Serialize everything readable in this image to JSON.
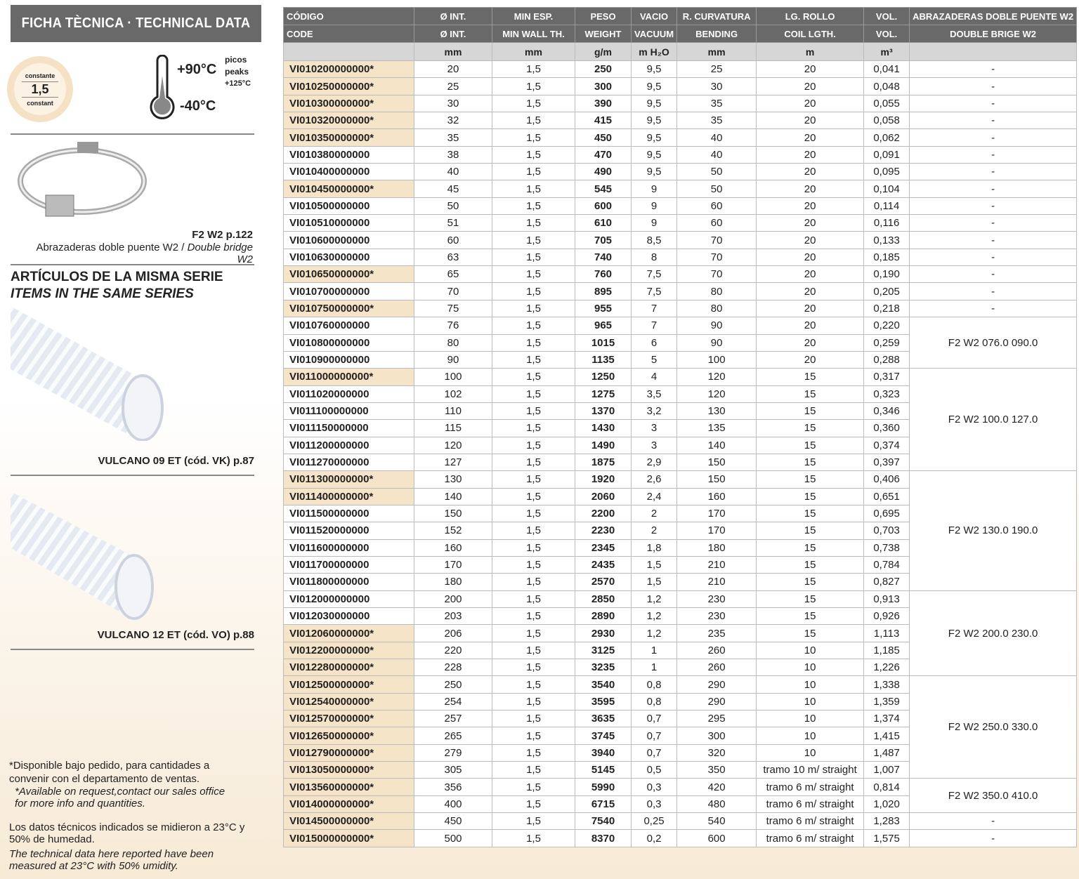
{
  "title": "FICHA TÈCNICA · TECHNICAL DATA",
  "badge": {
    "top": "constante",
    "value": "1,5",
    "bottom": "constant"
  },
  "temperature": {
    "max": "+90°C",
    "min": "-40°C",
    "peaks_es": "picos",
    "peaks_en": "peaks",
    "peaks_value": "+125°C"
  },
  "clamp": {
    "ref": "F2 W2 p.122",
    "caption_es": "Abrazaderas doble puente W2 / ",
    "caption_en": "Double bridge W2"
  },
  "series": {
    "title_es": "ARTÍCULOS DE LA MISMA SERIE",
    "title_en": "ITEMS IN THE SAME SERIES",
    "items": [
      {
        "label": "VULCANO 09 ET (cód. VK) p.87"
      },
      {
        "label": "VULCANO 12 ET (cód. VO) p.88"
      }
    ]
  },
  "notes": {
    "avail_es": "*Disponible bajo pedido, para cantidades a convenir con el departamento de ventas.",
    "avail_en": "*Available on request,contact our sales office for more info and quantities.",
    "conds_es": "Los datos técnicos indicados se midieron a 23°C y 50% de humedad.",
    "conds_en": "The technical data here reported have been measured at 23°C with 50% umidity."
  },
  "colors": {
    "header": "#696969",
    "highlight": "#f6e4c8",
    "units": "#d6d6d6"
  },
  "table": {
    "headers_es": [
      "CÓDIGO",
      "Ø INT.",
      "MIN ESP.",
      "PESO",
      "VACIO",
      "R. CURVATURA",
      "LG. ROLLO",
      "VOL.",
      "ABRAZADERAS DOBLE PUENTE W2"
    ],
    "headers_en": [
      "CODE",
      "Ø INT.",
      "MIN WALL TH.",
      "WEIGHT",
      "VACUUM",
      "BENDING",
      "COIL LGTH.",
      "VOL.",
      "DOUBLE BRIGE W2"
    ],
    "units": [
      "",
      "mm",
      "mm",
      "g/m",
      "m H₂O",
      "mm",
      "m",
      "m³",
      ""
    ],
    "rows": [
      [
        "VI010200000000*",
        "20",
        "1,5",
        "250",
        "9,5",
        "25",
        "20",
        "0,041"
      ],
      [
        "VI010250000000*",
        "25",
        "1,5",
        "300",
        "9,5",
        "30",
        "20",
        "0,048"
      ],
      [
        "VI010300000000*",
        "30",
        "1,5",
        "390",
        "9,5",
        "35",
        "20",
        "0,055"
      ],
      [
        "VI010320000000*",
        "32",
        "1,5",
        "415",
        "9,5",
        "35",
        "20",
        "0,058"
      ],
      [
        "VI010350000000*",
        "35",
        "1,5",
        "450",
        "9,5",
        "40",
        "20",
        "0,062"
      ],
      [
        "VI010380000000",
        "38",
        "1,5",
        "470",
        "9,5",
        "40",
        "20",
        "0,091"
      ],
      [
        "VI010400000000",
        "40",
        "1,5",
        "490",
        "9,5",
        "50",
        "20",
        "0,095"
      ],
      [
        "VI010450000000*",
        "45",
        "1,5",
        "545",
        "9",
        "50",
        "20",
        "0,104"
      ],
      [
        "VI010500000000",
        "50",
        "1,5",
        "600",
        "9",
        "60",
        "20",
        "0,114"
      ],
      [
        "VI010510000000",
        "51",
        "1,5",
        "610",
        "9",
        "60",
        "20",
        "0,116"
      ],
      [
        "VI010600000000",
        "60",
        "1,5",
        "705",
        "8,5",
        "70",
        "20",
        "0,133"
      ],
      [
        "VI010630000000",
        "63",
        "1,5",
        "740",
        "8",
        "70",
        "20",
        "0,185"
      ],
      [
        "VI010650000000*",
        "65",
        "1,5",
        "760",
        "7,5",
        "70",
        "20",
        "0,190"
      ],
      [
        "VI010700000000",
        "70",
        "1,5",
        "895",
        "7,5",
        "80",
        "20",
        "0,205"
      ],
      [
        "VI010750000000*",
        "75",
        "1,5",
        "955",
        "7",
        "80",
        "20",
        "0,218"
      ],
      [
        "VI010760000000",
        "76",
        "1,5",
        "965",
        "7",
        "90",
        "20",
        "0,220"
      ],
      [
        "VI010800000000",
        "80",
        "1,5",
        "1015",
        "6",
        "90",
        "20",
        "0,259"
      ],
      [
        "VI010900000000",
        "90",
        "1,5",
        "1135",
        "5",
        "100",
        "20",
        "0,288"
      ],
      [
        "VI011000000000*",
        "100",
        "1,5",
        "1250",
        "4",
        "120",
        "15",
        "0,317"
      ],
      [
        "VI011020000000",
        "102",
        "1,5",
        "1275",
        "3,5",
        "120",
        "15",
        "0,323"
      ],
      [
        "VI011100000000",
        "110",
        "1,5",
        "1370",
        "3,2",
        "130",
        "15",
        "0,346"
      ],
      [
        "VI011150000000",
        "115",
        "1,5",
        "1430",
        "3",
        "135",
        "15",
        "0,360"
      ],
      [
        "VI011200000000",
        "120",
        "1,5",
        "1490",
        "3",
        "140",
        "15",
        "0,374"
      ],
      [
        "VI011270000000",
        "127",
        "1,5",
        "1875",
        "2,9",
        "150",
        "15",
        "0,397"
      ],
      [
        "VI011300000000*",
        "130",
        "1,5",
        "1920",
        "2,6",
        "150",
        "15",
        "0,406"
      ],
      [
        "VI011400000000*",
        "140",
        "1,5",
        "2060",
        "2,4",
        "160",
        "15",
        "0,651"
      ],
      [
        "VI011500000000",
        "150",
        "1,5",
        "2200",
        "2",
        "170",
        "15",
        "0,695"
      ],
      [
        "VI011520000000",
        "152",
        "1,5",
        "2230",
        "2",
        "170",
        "15",
        "0,703"
      ],
      [
        "VI011600000000",
        "160",
        "1,5",
        "2345",
        "1,8",
        "180",
        "15",
        "0,738"
      ],
      [
        "VI011700000000",
        "170",
        "1,5",
        "2435",
        "1,5",
        "210",
        "15",
        "0,784"
      ],
      [
        "VI011800000000",
        "180",
        "1,5",
        "2570",
        "1,5",
        "210",
        "15",
        "0,827"
      ],
      [
        "VI012000000000",
        "200",
        "1,5",
        "2850",
        "1,2",
        "230",
        "15",
        "0,913"
      ],
      [
        "VI012030000000",
        "203",
        "1,5",
        "2890",
        "1,2",
        "230",
        "15",
        "0,926"
      ],
      [
        "VI012060000000*",
        "206",
        "1,5",
        "2930",
        "1,2",
        "235",
        "15",
        "1,113"
      ],
      [
        "VI012200000000*",
        "220",
        "1,5",
        "3125",
        "1",
        "260",
        "10",
        "1,185"
      ],
      [
        "VI012280000000*",
        "228",
        "1,5",
        "3235",
        "1",
        "260",
        "10",
        "1,226"
      ],
      [
        "VI012500000000*",
        "250",
        "1,5",
        "3540",
        "0,8",
        "290",
        "10",
        "1,338"
      ],
      [
        "VI012540000000*",
        "254",
        "1,5",
        "3595",
        "0,8",
        "290",
        "10",
        "1,359"
      ],
      [
        "VI012570000000*",
        "257",
        "1,5",
        "3635",
        "0,7",
        "295",
        "10",
        "1,374"
      ],
      [
        "VI012650000000*",
        "265",
        "1,5",
        "3745",
        "0,7",
        "300",
        "10",
        "1,415"
      ],
      [
        "VI012790000000*",
        "279",
        "1,5",
        "3940",
        "0,7",
        "320",
        "10",
        "1,487"
      ],
      [
        "VI013050000000*",
        "305",
        "1,5",
        "5145",
        "0,5",
        "350",
        "tramo 10 m/ straight",
        "1,007"
      ],
      [
        "VI013560000000*",
        "356",
        "1,5",
        "5990",
        "0,3",
        "420",
        "tramo 6 m/ straight",
        "0,814"
      ],
      [
        "VI014000000000*",
        "400",
        "1,5",
        "6715",
        "0,3",
        "480",
        "tramo 6 m/ straight",
        "1,020"
      ],
      [
        "VI014500000000*",
        "450",
        "1,5",
        "7540",
        "0,25",
        "540",
        "tramo 6 m/ straight",
        "1,283"
      ],
      [
        "VI015000000000*",
        "500",
        "1,5",
        "8370",
        "0,2",
        "600",
        "tramo 6 m/ straight",
        "1,575"
      ]
    ],
    "clamp_groups": [
      {
        "label": "-",
        "rows": 1
      },
      {
        "label": "-",
        "rows": 1
      },
      {
        "label": "-",
        "rows": 1
      },
      {
        "label": "-",
        "rows": 1
      },
      {
        "label": "-",
        "rows": 1
      },
      {
        "label": "-",
        "rows": 1
      },
      {
        "label": "-",
        "rows": 1
      },
      {
        "label": "-",
        "rows": 1
      },
      {
        "label": "-",
        "rows": 1
      },
      {
        "label": "-",
        "rows": 1
      },
      {
        "label": "-",
        "rows": 1
      },
      {
        "label": "-",
        "rows": 1
      },
      {
        "label": "-",
        "rows": 1
      },
      {
        "label": "-",
        "rows": 1
      },
      {
        "label": "-",
        "rows": 1
      },
      {
        "label": "F2 W2 076.0 090.0",
        "rows": 3
      },
      {
        "label": "F2 W2 100.0 127.0",
        "rows": 6
      },
      {
        "label": "F2 W2 130.0 190.0",
        "rows": 7
      },
      {
        "label": "F2 W2 200.0 230.0",
        "rows": 5
      },
      {
        "label": "F2 W2 250.0 330.0",
        "rows": 6
      },
      {
        "label": "F2 W2 350.0 410.0",
        "rows": 2
      },
      {
        "label": "-",
        "rows": 1
      },
      {
        "label": "-",
        "rows": 1
      }
    ]
  }
}
